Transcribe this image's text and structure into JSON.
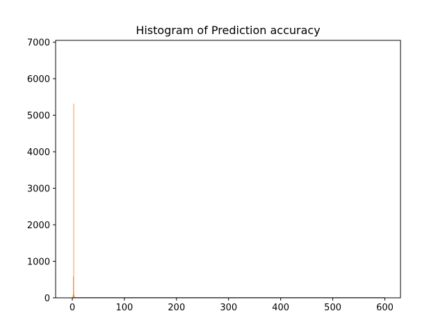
{
  "chart_data": {
    "type": "bar",
    "title": "Histogram of Prediction accuracy",
    "xlabel": "",
    "ylabel": "",
    "xlim": [
      -32,
      630
    ],
    "ylim": [
      0,
      7050
    ],
    "x_ticks": [
      0,
      100,
      200,
      300,
      400,
      500,
      600
    ],
    "y_ticks": [
      0,
      1000,
      2000,
      3000,
      4000,
      5000,
      6000,
      7000
    ],
    "grid": false,
    "legend": "none",
    "series": [
      {
        "color": "#1f77b4",
        "bins": [
          {
            "x0": 0,
            "x1": 600,
            "value": 15
          }
        ]
      },
      {
        "color": "#ff7f0e",
        "bins": [
          {
            "x0": 0.8,
            "x1": 1.5,
            "value": 70
          },
          {
            "x0": 1.5,
            "x1": 2.2,
            "value": 580
          },
          {
            "x0": 2.2,
            "x1": 2.9,
            "value": 5320
          },
          {
            "x0": 2.9,
            "x1": 3.6,
            "value": 100
          },
          {
            "x0": 3.6,
            "x1": 4.3,
            "value": 40
          }
        ]
      }
    ]
  }
}
